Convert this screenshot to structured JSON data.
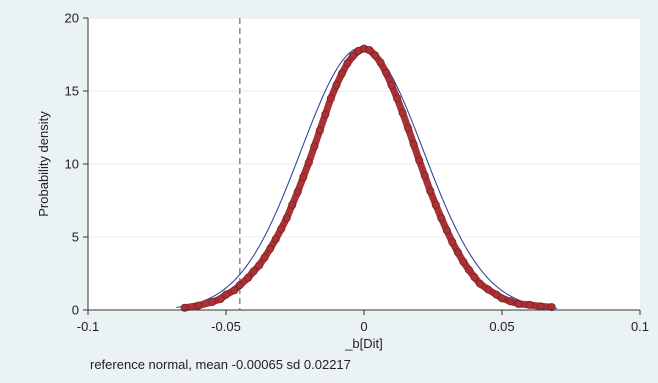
{
  "chart_data": {
    "type": "scatter",
    "title": "",
    "xlabel": "_b[Dit]",
    "ylabel": "Probability density",
    "note": "reference normal, mean -0.00065 sd 0.02217",
    "xlim": [
      -0.1,
      0.1
    ],
    "ylim": [
      0,
      20
    ],
    "x_ticks": [
      -0.1,
      -0.05,
      0,
      0.05,
      0.1
    ],
    "x_tick_labels": [
      "-0.1",
      "-0.05",
      "0",
      "0.05",
      "0.1"
    ],
    "y_ticks": [
      0,
      5,
      10,
      15,
      20
    ],
    "y_tick_labels": [
      "0",
      "5",
      "10",
      "15",
      "20"
    ],
    "reference_line": {
      "x": -0.045,
      "style": "dashed"
    },
    "grid": true,
    "reference_normal": {
      "mean": -0.00065,
      "sd": 0.02217
    },
    "colors": {
      "points": "#a83236",
      "points_edge": "#7e1f22",
      "curve": "#1f3a93",
      "refline": "#909090",
      "grid": "#e4ecee",
      "plot_bg": "#ffffff",
      "outer_bg": "#eaf2f3"
    },
    "series": [
      {
        "values": [
          [
            -0.065,
            0.15
          ],
          [
            -0.06,
            0.3
          ],
          [
            -0.055,
            0.55
          ],
          [
            -0.052,
            0.75
          ],
          [
            -0.05,
            1.05
          ],
          [
            -0.047,
            1.35
          ],
          [
            -0.045,
            1.7
          ],
          [
            -0.042,
            2.2
          ],
          [
            -0.04,
            2.65
          ],
          [
            -0.038,
            3.05
          ],
          [
            -0.036,
            3.6
          ],
          [
            -0.034,
            4.2
          ],
          [
            -0.032,
            4.85
          ],
          [
            -0.03,
            5.55
          ],
          [
            -0.028,
            6.3
          ],
          [
            -0.026,
            7.2
          ],
          [
            -0.024,
            8.1
          ],
          [
            -0.022,
            9.1
          ],
          [
            -0.02,
            10.1
          ],
          [
            -0.018,
            11.2
          ],
          [
            -0.016,
            12.3
          ],
          [
            -0.014,
            13.4
          ],
          [
            -0.012,
            14.5
          ],
          [
            -0.01,
            15.4
          ],
          [
            -0.008,
            16.2
          ],
          [
            -0.006,
            16.9
          ],
          [
            -0.004,
            17.4
          ],
          [
            -0.002,
            17.75
          ],
          [
            0.0,
            17.9
          ],
          [
            0.002,
            17.8
          ],
          [
            0.004,
            17.45
          ],
          [
            0.006,
            16.95
          ],
          [
            0.008,
            16.25
          ],
          [
            0.01,
            15.4
          ],
          [
            0.012,
            14.5
          ],
          [
            0.014,
            13.5
          ],
          [
            0.016,
            12.45
          ],
          [
            0.018,
            11.35
          ],
          [
            0.02,
            10.25
          ],
          [
            0.022,
            9.2
          ],
          [
            0.024,
            8.15
          ],
          [
            0.026,
            7.2
          ],
          [
            0.028,
            6.3
          ],
          [
            0.03,
            5.45
          ],
          [
            0.032,
            4.65
          ],
          [
            0.034,
            3.95
          ],
          [
            0.036,
            3.3
          ],
          [
            0.038,
            2.75
          ],
          [
            0.04,
            2.25
          ],
          [
            0.042,
            1.8
          ],
          [
            0.045,
            1.4
          ],
          [
            0.048,
            1.05
          ],
          [
            0.05,
            0.8
          ],
          [
            0.053,
            0.6
          ],
          [
            0.056,
            0.42
          ],
          [
            0.06,
            0.35
          ],
          [
            0.064,
            0.25
          ],
          [
            0.068,
            0.2
          ]
        ]
      }
    ]
  }
}
